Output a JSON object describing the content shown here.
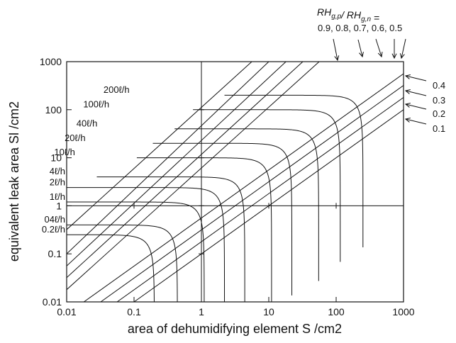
{
  "chart_data": {
    "type": "line",
    "title": "",
    "xlabel": "area of dehumidifying element S /cm2",
    "ylabel": "equivalent leak area Sl /cm2",
    "x_scale": "log",
    "y_scale": "log",
    "xlim": [
      0.01,
      1000
    ],
    "ylim": [
      0.01,
      1000
    ],
    "x_ticks": [
      "0.01",
      "0.1",
      "1",
      "10",
      "100",
      "1000"
    ],
    "y_ticks": [
      "0.01",
      "0.1",
      "1",
      "10",
      "100",
      "1000"
    ],
    "grid": false,
    "reference_lines": {
      "x": 1,
      "y": 1
    },
    "ratio_legend": {
      "heading": "RHg,p / RHg,n =",
      "heading_parts": [
        "RH",
        "g,p",
        "/ RH",
        "g,n",
        " ="
      ],
      "top_values_text": "0.9,  0.8, 0.7, 0.6, 0.5",
      "right_values": [
        "0.4",
        "0.3",
        "0.2",
        "0.1"
      ]
    },
    "ratio_lines": [
      {
        "name": "0.9",
        "points": [
          [
            5.6,
            1000
          ],
          [
            0.01,
            0.32
          ]
        ]
      },
      {
        "name": "0.8",
        "points": [
          [
            10,
            1000
          ],
          [
            0.01,
            0.1
          ]
        ]
      },
      {
        "name": "0.7",
        "points": [
          [
            18,
            1000
          ],
          [
            0.01,
            0.056
          ]
        ]
      },
      {
        "name": "0.6",
        "points": [
          [
            32,
            1000
          ],
          [
            0.01,
            0.032
          ]
        ]
      },
      {
        "name": "0.5",
        "points": [
          [
            56,
            1000
          ],
          [
            0.01,
            0.018
          ]
        ]
      },
      {
        "name": "0.4",
        "points": [
          [
            1000,
            560
          ],
          [
            0.018,
            0.01
          ]
        ]
      },
      {
        "name": "0.3",
        "points": [
          [
            1000,
            320
          ],
          [
            0.032,
            0.01
          ]
        ]
      },
      {
        "name": "0.2",
        "points": [
          [
            1000,
            180
          ],
          [
            0.056,
            0.01
          ]
        ]
      },
      {
        "name": "0.1",
        "points": [
          [
            1000,
            100
          ],
          [
            0.1,
            0.01
          ]
        ]
      }
    ],
    "series": [
      {
        "name": "200ℓ/h",
        "label": "200ℓ/h",
        "plateau": 200,
        "S_limit": 250
      },
      {
        "name": "100ℓ/h",
        "label": "100ℓ/h",
        "plateau": 100,
        "S_limit": 115
      },
      {
        "name": "40ℓ/h",
        "label": "40ℓ/h",
        "plateau": 40,
        "S_limit": 55
      },
      {
        "name": "20ℓ/h",
        "label": "20ℓ/h",
        "plateau": 20,
        "S_limit": 22
      },
      {
        "name": "10ℓ/h",
        "label": "10ℓ/h",
        "plateau": 10,
        "S_limit": 11
      },
      {
        "name": "4ℓ/h",
        "label": "4ℓ/h",
        "plateau": 4,
        "S_limit": 4.4
      },
      {
        "name": "2ℓ/h",
        "label": "2ℓ/h",
        "plateau": 2.4,
        "S_limit": 2.2
      },
      {
        "name": "1ℓ/h",
        "label": "1ℓ/h",
        "plateau": 1.2,
        "S_limit": 1.1
      },
      {
        "name": "04ℓ/h",
        "label": "04ℓ/h",
        "plateau": 0.4,
        "S_limit": 0.44
      },
      {
        "name": "0.2ℓ/h",
        "label": "0.2ℓ/h",
        "plateau": 0.25,
        "S_limit": 0.2
      }
    ]
  }
}
